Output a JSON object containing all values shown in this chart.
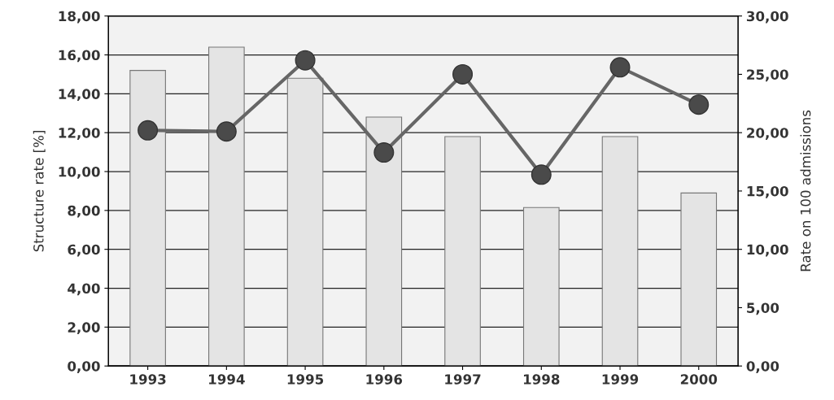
{
  "chart_data": {
    "type": "bar",
    "categories": [
      "1993",
      "1994",
      "1995",
      "1996",
      "1997",
      "1998",
      "1999",
      "2000"
    ],
    "ylabel": "Structure rate [%]",
    "y2label": "Rate on 100 admissions",
    "series": [
      {
        "color": "#e4e4e4",
        "values": [
          15.2,
          16.4,
          14.8,
          12.8,
          11.8,
          8.15,
          11.8,
          8.9
        ]
      },
      {
        "type": "line",
        "axis": "y2",
        "color": "#666666",
        "values": [
          20.2,
          20.1,
          26.2,
          18.3,
          25.0,
          16.4,
          25.6,
          22.4
        ]
      }
    ],
    "marker": "circle",
    "line_style": "solid",
    "grid": "y",
    "ylim": [
      0,
      18
    ],
    "yticks": [
      {
        "value": 0,
        "label": "0,00"
      },
      {
        "value": 2,
        "label": "2,00"
      },
      {
        "value": 4,
        "label": "4,00"
      },
      {
        "value": 6,
        "label": "6,00"
      },
      {
        "value": 8,
        "label": "8,00"
      },
      {
        "value": 10,
        "label": "10,00"
      },
      {
        "value": 12,
        "label": "12,00"
      },
      {
        "value": 14,
        "label": "14,00"
      },
      {
        "value": 16,
        "label": "16,00"
      },
      {
        "value": 18,
        "label": "18,00"
      }
    ],
    "y2lim": [
      0,
      30
    ],
    "y2ticks": [
      {
        "value": 0,
        "label": "0,00"
      },
      {
        "value": 5,
        "label": "5,00"
      },
      {
        "value": 10,
        "label": "10,00"
      },
      {
        "value": 15,
        "label": "15,00"
      },
      {
        "value": 20,
        "label": "20,00"
      },
      {
        "value": 25,
        "label": "25,00"
      },
      {
        "value": 30,
        "label": "30,00"
      }
    ]
  }
}
